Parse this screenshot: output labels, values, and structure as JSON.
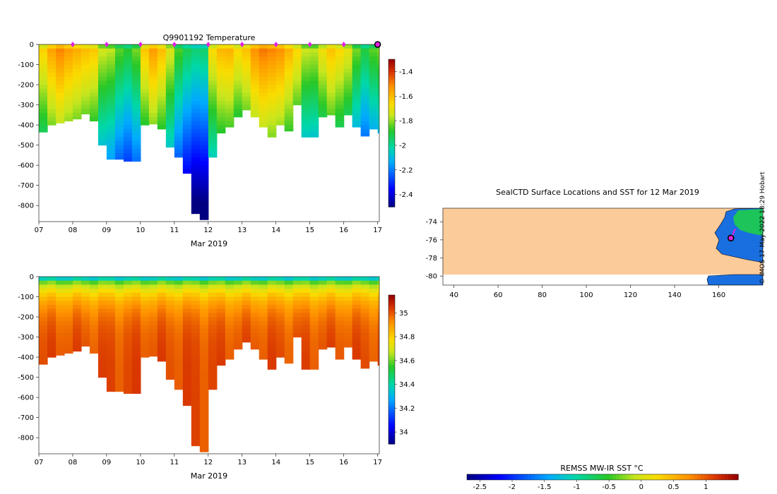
{
  "figure": {
    "credit": "© IMOS 17-May-2022 18:29 Hobart"
  },
  "chart_data": [
    {
      "type": "heatmap",
      "title": "Q9901192  Temperature",
      "xlabel": "Mar 2019",
      "ylabel": "",
      "xlim": [
        7,
        17.05
      ],
      "ylim": [
        -880,
        0
      ],
      "x_ticks": [
        "07",
        "08",
        "09",
        "10",
        "11",
        "12",
        "13",
        "14",
        "15",
        "16",
        "17"
      ],
      "y_ticks": [
        "0",
        "-100",
        "-200",
        "-300",
        "-400",
        "-500",
        "-600",
        "-700",
        "-800"
      ],
      "colorbar": {
        "min": -2.5,
        "max": -1.3,
        "ticks": [
          "-2.4",
          "-2.2",
          "-2",
          "-1.8",
          "-1.6",
          "-1.4"
        ]
      },
      "surface_markers_day": [
        8,
        9,
        10,
        11,
        12,
        13,
        14,
        15,
        16
      ],
      "current_profile_marker_day": 17,
      "profiles": {
        "day": [
          7.0,
          7.25,
          7.5,
          7.75,
          8.0,
          8.25,
          8.5,
          8.75,
          9.0,
          9.25,
          9.5,
          9.75,
          10.0,
          10.25,
          10.5,
          10.75,
          11.0,
          11.25,
          11.5,
          11.75,
          12.0,
          12.25,
          12.5,
          12.75,
          13.0,
          13.25,
          13.5,
          13.75,
          14.0,
          14.25,
          14.5,
          14.75,
          15.0,
          15.25,
          15.5,
          15.75,
          16.0,
          16.25,
          16.5,
          16.75,
          17.0
        ],
        "max_depth_m": [
          -435,
          -400,
          -390,
          -380,
          -370,
          -345,
          -380,
          -500,
          -570,
          -570,
          -580,
          -580,
          -400,
          -395,
          -420,
          -510,
          -560,
          -640,
          -840,
          -870,
          -560,
          -440,
          -410,
          -360,
          -325,
          -360,
          -410,
          -460,
          -400,
          -430,
          -300,
          -460,
          -460,
          -360,
          -350,
          -410,
          -350,
          -410,
          -455,
          -420,
          -440
        ],
        "temperature_c": [
          -1.62,
          -1.53,
          -1.48,
          -1.52,
          -1.55,
          -1.58,
          -1.6,
          -1.72,
          -1.74,
          -1.82,
          -1.86,
          -1.8,
          -1.6,
          -1.52,
          -1.58,
          -1.7,
          -1.83,
          -1.9,
          -1.94,
          -1.93,
          -1.64,
          -1.57,
          -1.56,
          -1.63,
          -1.59,
          -1.5,
          -1.46,
          -1.48,
          -1.5,
          -1.56,
          -1.63,
          -1.73,
          -1.74,
          -1.66,
          -1.59,
          -1.63,
          -1.68,
          -1.8,
          -1.88,
          -1.82,
          -1.78
        ]
      }
    },
    {
      "type": "heatmap",
      "title": "",
      "xlabel": "Mar 2019",
      "ylabel": "",
      "xlim": [
        7,
        17.05
      ],
      "ylim": [
        -880,
        0
      ],
      "x_ticks": [
        "07",
        "08",
        "09",
        "10",
        "11",
        "12",
        "13",
        "14",
        "15",
        "16",
        "17"
      ],
      "y_ticks": [
        "0",
        "-100",
        "-200",
        "-300",
        "-400",
        "-500",
        "-600",
        "-700",
        "-800"
      ],
      "colorbar": {
        "min": 33.9,
        "max": 35.15,
        "ticks": [
          "34",
          "34.2",
          "34.4",
          "34.6",
          "34.8",
          "35"
        ]
      },
      "profiles": {
        "day": [
          7.0,
          7.25,
          7.5,
          7.75,
          8.0,
          8.25,
          8.5,
          8.75,
          9.0,
          9.25,
          9.5,
          9.75,
          10.0,
          10.25,
          10.5,
          10.75,
          11.0,
          11.25,
          11.5,
          11.75,
          12.0,
          12.25,
          12.5,
          12.75,
          13.0,
          13.25,
          13.5,
          13.75,
          14.0,
          14.25,
          14.5,
          14.75,
          15.0,
          15.25,
          15.5,
          15.75,
          16.0,
          16.25,
          16.5,
          16.75,
          17.0
        ],
        "max_depth_m": [
          -435,
          -400,
          -390,
          -380,
          -370,
          -345,
          -380,
          -500,
          -570,
          -570,
          -580,
          -580,
          -400,
          -395,
          -420,
          -510,
          -560,
          -640,
          -840,
          -870,
          -560,
          -440,
          -410,
          -360,
          -325,
          -360,
          -410,
          -460,
          -400,
          -430,
          -300,
          -460,
          -460,
          -360,
          -350,
          -410,
          -350,
          -410,
          -455,
          -420,
          -440
        ]
      }
    },
    {
      "type": "heatmap",
      "title": "SealCTD Surface Locations and SST for 12 Mar 2019",
      "xlabel": "",
      "ylabel": "",
      "xlim": [
        35,
        180
      ],
      "ylim": [
        -81,
        -72.5
      ],
      "x_ticks": [
        "40",
        "60",
        "80",
        "100",
        "120",
        "140",
        "160"
      ],
      "y_ticks": [
        "-74",
        "-76",
        "-78",
        "-80"
      ],
      "track": {
        "lon": [
          167.5,
          167.0,
          166.6,
          166.2,
          165.9,
          165.6
        ],
        "lat": [
          -74.8,
          -75.0,
          -75.3,
          -75.5,
          -75.7,
          -75.9
        ]
      },
      "current_position": {
        "lon": 165.5,
        "lat": -75.8
      }
    },
    {
      "type": "colorbar",
      "title": "REMSS MW-IR SST °C",
      "min": -2.7,
      "max": 1.5,
      "ticks": [
        "-2.5",
        "-2",
        "-1.5",
        "-1",
        "-0.5",
        "0",
        "0.5",
        "1"
      ]
    }
  ]
}
